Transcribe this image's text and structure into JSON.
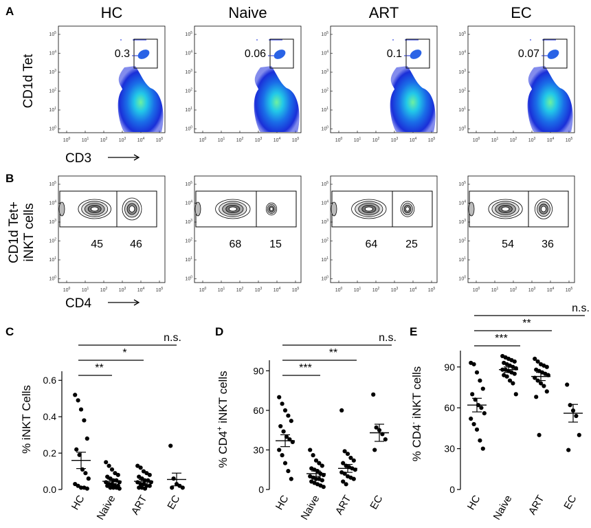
{
  "panels": {
    "A": {
      "letter": "A",
      "y_axis_label": "CD1d Tet",
      "x_axis_label": "CD3",
      "groups": [
        {
          "title": "HC",
          "gate_value": "0.3"
        },
        {
          "title": "Naive",
          "gate_value": "0.06"
        },
        {
          "title": "ART",
          "gate_value": "0.1"
        },
        {
          "title": "EC",
          "gate_value": "0.07"
        }
      ]
    },
    "B": {
      "letter": "B",
      "y_axis_label_line1": "CD1d Tet+",
      "y_axis_label_line2": "iNKT cells",
      "x_axis_label": "CD4",
      "groups": [
        {
          "title": "HC",
          "left_gate": "45",
          "right_gate": "46"
        },
        {
          "title": "Naive",
          "left_gate": "68",
          "right_gate": "15"
        },
        {
          "title": "ART",
          "left_gate": "64",
          "right_gate": "25"
        },
        {
          "title": "EC",
          "left_gate": "54",
          "right_gate": "36"
        }
      ]
    },
    "C": {
      "letter": "C"
    },
    "D": {
      "letter": "D"
    },
    "E": {
      "letter": "E"
    }
  },
  "flow_ticks": {
    "y": [
      "10^5",
      "10^4",
      "10^3",
      "10^2",
      "10^1",
      "10^0"
    ],
    "x": [
      "10^0",
      "10^1",
      "10^2",
      "10^3",
      "10^4",
      "10^5"
    ]
  },
  "chart_data": [
    {
      "id": "C",
      "type": "scatter",
      "ylabel": "% iNKT Cells",
      "categories": [
        "HC",
        "Naive",
        "ART",
        "EC"
      ],
      "ylim": [
        0,
        0.65
      ],
      "yticks": [
        0.0,
        0.2,
        0.4,
        0.6
      ],
      "ytick_labels": [
        "0.0",
        "0.2",
        "0.4",
        "0.6"
      ],
      "points": [
        [
          0.52,
          0.49,
          0.44,
          0.38,
          0.28,
          0.22,
          0.19,
          0.11,
          0.09,
          0.06,
          0.03,
          0.02,
          0.01,
          0.01,
          0.005
        ],
        [
          0.15,
          0.13,
          0.11,
          0.09,
          0.08,
          0.07,
          0.06,
          0.05,
          0.05,
          0.04,
          0.04,
          0.03,
          0.03,
          0.02,
          0.02,
          0.02,
          0.01,
          0.01,
          0.01,
          0.005
        ],
        [
          0.13,
          0.12,
          0.1,
          0.09,
          0.08,
          0.07,
          0.06,
          0.05,
          0.05,
          0.04,
          0.04,
          0.03,
          0.03,
          0.02,
          0.02,
          0.01,
          0.01,
          0.005
        ],
        [
          0.24,
          0.06,
          0.03,
          0.02,
          0.01,
          0.01
        ]
      ],
      "means": [
        0.16,
        0.045,
        0.045,
        0.055
      ],
      "sems": [
        0.045,
        0.012,
        0.01,
        0.035
      ],
      "comparisons": [
        {
          "label": "**",
          "from": "HC",
          "to": "Naive"
        },
        {
          "label": "*",
          "from": "HC",
          "to": "ART"
        },
        {
          "label": "n.s.",
          "from": "HC",
          "to": "EC"
        }
      ]
    },
    {
      "id": "D",
      "type": "scatter",
      "ylabel_prefix": "% CD4",
      "ylabel_sup": "+",
      "ylabel_suffix": " iNKT cells",
      "categories": [
        "HC",
        "Naive",
        "ART",
        "EC"
      ],
      "ylim": [
        0,
        98
      ],
      "yticks": [
        0,
        30,
        60,
        90
      ],
      "ytick_labels": [
        "0",
        "30",
        "60",
        "90"
      ],
      "points": [
        [
          70,
          65,
          60,
          56,
          52,
          48,
          44,
          40,
          38,
          36,
          30,
          26,
          20,
          14,
          8
        ],
        [
          30,
          26,
          22,
          20,
          18,
          16,
          15,
          14,
          12,
          11,
          10,
          9,
          8,
          8,
          7,
          6,
          5,
          4,
          3,
          2
        ],
        [
          60,
          29,
          27,
          24,
          22,
          20,
          18,
          17,
          16,
          15,
          13,
          12,
          10,
          9,
          8,
          6,
          4
        ],
        [
          72,
          47,
          45,
          42,
          38,
          30
        ]
      ],
      "means": [
        37,
        12,
        16,
        43
      ],
      "sems": [
        4.5,
        2,
        3,
        6.5
      ],
      "comparisons": [
        {
          "label": "***",
          "from": "HC",
          "to": "Naive"
        },
        {
          "label": "**",
          "from": "HC",
          "to": "ART"
        },
        {
          "label": "n.s.",
          "from": "HC",
          "to": "EC"
        }
      ]
    },
    {
      "id": "E",
      "type": "scatter",
      "ylabel_prefix": "% CD4",
      "ylabel_sup": "-",
      "ylabel_suffix": " iNKT cells",
      "categories": [
        "HC",
        "Naive",
        "ART",
        "EC"
      ],
      "ylim": [
        0,
        102
      ],
      "yticks": [
        0,
        30,
        60,
        90
      ],
      "ytick_labels": [
        "0",
        "30",
        "60",
        "90"
      ],
      "points": [
        [
          93,
          92,
          86,
          80,
          74,
          70,
          66,
          62,
          60,
          56,
          52,
          48,
          44,
          36,
          30
        ],
        [
          98,
          97,
          96,
          95,
          94,
          93,
          92,
          91,
          90,
          89,
          88,
          88,
          87,
          86,
          85,
          84,
          83,
          80,
          78,
          70
        ],
        [
          96,
          94,
          92,
          91,
          90,
          88,
          87,
          86,
          85,
          84,
          82,
          80,
          78,
          76,
          72,
          68,
          40
        ],
        [
          77,
          62,
          58,
          54,
          40,
          29
        ]
      ],
      "means": [
        62,
        88,
        83,
        56
      ],
      "sems": [
        5,
        2,
        3,
        6.5
      ],
      "comparisons": [
        {
          "label": "***",
          "from": "HC",
          "to": "Naive"
        },
        {
          "label": "**",
          "from": "HC",
          "to": "ART"
        },
        {
          "label": "n.s.",
          "from": "HC",
          "to": "EC"
        }
      ]
    }
  ]
}
